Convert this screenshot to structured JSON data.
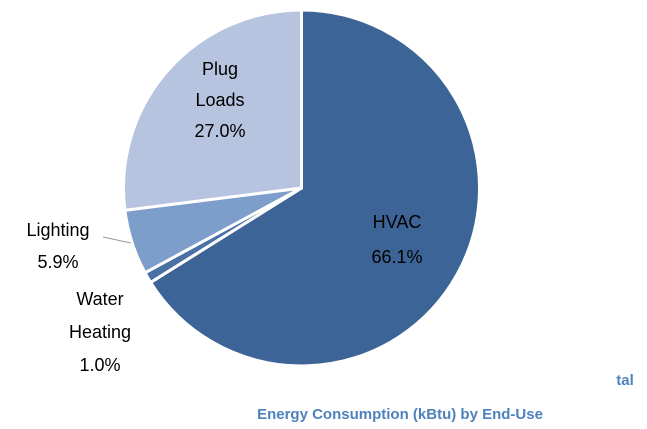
{
  "chart_data": {
    "type": "pie",
    "title": [
      "tal",
      "Energy Consumption (kBtu) by End-Use"
    ],
    "categories": [
      "HVAC",
      "Water Heating",
      "Lighting",
      "Plug Loads"
    ],
    "values": [
      66.1,
      1.0,
      5.9,
      27.0
    ],
    "value_labels": [
      "66.1%",
      "1.0%",
      "5.9%",
      "27.0%"
    ],
    "colors": [
      "#3d6496",
      "#4a70a6",
      "#7d9dcb",
      "#b6c4df"
    ]
  }
}
